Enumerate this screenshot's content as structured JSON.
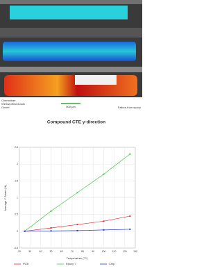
{
  "image_caption": {
    "company": [
      "Chemnitzer",
      "Werkstoffmechanik",
      "GmbH"
    ],
    "scale": "500 µm",
    "note": "Failure from epoxy"
  },
  "chart_data": {
    "type": "line",
    "title": "Compound CTE y-direction",
    "x_label": "Temperature (°C)",
    "y_label": "Average Y Strain (%)",
    "x": [
      25,
      50,
      75,
      100,
      125
    ],
    "series": [
      {
        "name": "PCB",
        "color": "#e03030",
        "values": [
          0,
          0.1,
          0.2,
          0.3,
          0.45
        ]
      },
      {
        "name": "Epoxy ?",
        "color": "#44cc44",
        "values": [
          0,
          0.6,
          1.15,
          1.7,
          2.3
        ]
      },
      {
        "name": "Chip",
        "color": "#2a3fd0",
        "values": [
          0,
          0.01,
          0.02,
          0.04,
          0.06
        ]
      }
    ],
    "xlim": [
      20,
      130
    ],
    "xticks": [
      20,
      30,
      40,
      50,
      60,
      70,
      80,
      90,
      100,
      110,
      120,
      130
    ],
    "ylim": [
      -0.5,
      2.5
    ],
    "yticks": [
      -0.5,
      0,
      0.5,
      1,
      1.5,
      2,
      2.5
    ],
    "grid": true
  }
}
